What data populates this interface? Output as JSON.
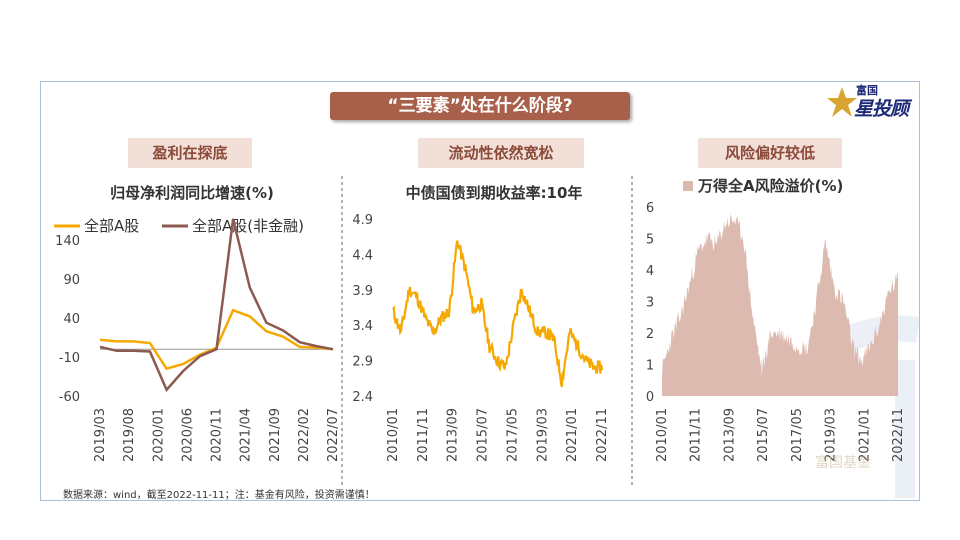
{
  "main_title": "“三要素”处在什么阶段?",
  "logo": {
    "top": "富国",
    "main": "投顾",
    "star_char": "星"
  },
  "sections": [
    {
      "label": "盈利在探底"
    },
    {
      "label": "流动性依然宽松"
    },
    {
      "label": "风险偏好较低"
    }
  ],
  "footnote": "数据来源：wind，截至2022-11-11；注：基金有风险，投资需谨慎！",
  "watermark": "富国基金",
  "colors": {
    "series_all_a": "#f5a800",
    "series_non_fin": "#8b5a50",
    "bond": "#f5a800",
    "premium_fill": "#dcbab0",
    "title_bg": "#a8604b",
    "badge_bg": "#f2dfd8"
  },
  "chart_data": [
    {
      "type": "line",
      "title": "归母净利润同比增速(%)",
      "x": [
        "2019/03",
        "2019/06",
        "2019/09",
        "2019/12",
        "2020/03",
        "2020/06",
        "2020/09",
        "2020/12",
        "2021/03",
        "2021/06",
        "2021/09",
        "2021/12",
        "2022/03",
        "2022/06",
        "2022/09"
      ],
      "x_tick_labels": [
        "2019/03",
        "2019/08",
        "2020/01",
        "2020/06",
        "2020/11",
        "2021/04",
        "2021/09",
        "2022/02",
        "2022/07"
      ],
      "series": [
        {
          "name": "全部A股",
          "values": [
            12,
            10,
            10,
            8,
            -25,
            -19,
            -7,
            2,
            50,
            42,
            23,
            16,
            3,
            2,
            0
          ]
        },
        {
          "name": "全部A股(非金融)",
          "values": [
            3,
            -2,
            -2,
            -3,
            -52,
            -28,
            -9,
            0,
            167,
            79,
            34,
            24,
            9,
            4,
            0
          ]
        }
      ],
      "yticks": [
        -60,
        -10,
        40,
        90,
        140
      ],
      "ylim": [
        -60,
        180
      ],
      "legend": "top"
    },
    {
      "type": "line",
      "title": "中债国债到期收益率:10年",
      "x": [
        "2010/01",
        "2010/07",
        "2011/01",
        "2011/07",
        "2012/01",
        "2012/07",
        "2013/01",
        "2013/07",
        "2013/11",
        "2014/04",
        "2014/10",
        "2015/04",
        "2015/10",
        "2016/04",
        "2016/10",
        "2017/04",
        "2017/11",
        "2018/05",
        "2018/11",
        "2019/05",
        "2019/11",
        "2020/04",
        "2020/11",
        "2021/05",
        "2021/11",
        "2022/05",
        "2022/11"
      ],
      "x_tick_labels": [
        "2010/01",
        "2011/11",
        "2013/09",
        "2015/07",
        "2017/05",
        "2019/03",
        "2021/01",
        "2022/11"
      ],
      "series": [
        {
          "name": "中债国债到期收益率:10年",
          "values": [
            3.6,
            3.3,
            3.9,
            3.8,
            3.5,
            3.3,
            3.5,
            3.6,
            4.6,
            4.2,
            3.6,
            3.7,
            3.1,
            2.9,
            2.8,
            3.4,
            3.9,
            3.6,
            3.3,
            3.3,
            3.2,
            2.6,
            3.3,
            3.1,
            2.9,
            2.8,
            2.8
          ]
        }
      ],
      "yticks": [
        2.4,
        2.9,
        3.4,
        3.9,
        4.4,
        4.9
      ],
      "ylim": [
        2.4,
        4.9
      ]
    },
    {
      "type": "area",
      "title": "万得全A风险溢价(%)",
      "x": [
        "2010/01",
        "2010/07",
        "2011/01",
        "2011/07",
        "2012/01",
        "2012/07",
        "2013/01",
        "2013/07",
        "2014/01",
        "2014/07",
        "2015/01",
        "2015/07",
        "2016/01",
        "2016/07",
        "2017/01",
        "2017/07",
        "2018/01",
        "2018/07",
        "2019/01",
        "2019/07",
        "2020/01",
        "2020/07",
        "2021/01",
        "2021/07",
        "2022/01",
        "2022/07",
        "2022/11"
      ],
      "x_tick_labels": [
        "2010/01",
        "2011/11",
        "2013/09",
        "2015/07",
        "2017/05",
        "2019/03",
        "2021/01",
        "2022/11"
      ],
      "series": [
        {
          "name": "万得全A风险溢价(%)",
          "values": [
            0.8,
            1.8,
            2.5,
            3.5,
            4.6,
            5.0,
            4.8,
            5.5,
            5.6,
            5.0,
            2.5,
            0.8,
            2.0,
            2.0,
            1.8,
            1.6,
            1.5,
            3.0,
            4.9,
            3.4,
            3.0,
            1.6,
            1.1,
            1.6,
            2.3,
            3.3,
            3.7
          ]
        }
      ],
      "yticks": [
        0,
        1,
        2,
        3,
        4,
        5,
        6
      ],
      "ylim": [
        0,
        6
      ],
      "legend": "top"
    }
  ]
}
